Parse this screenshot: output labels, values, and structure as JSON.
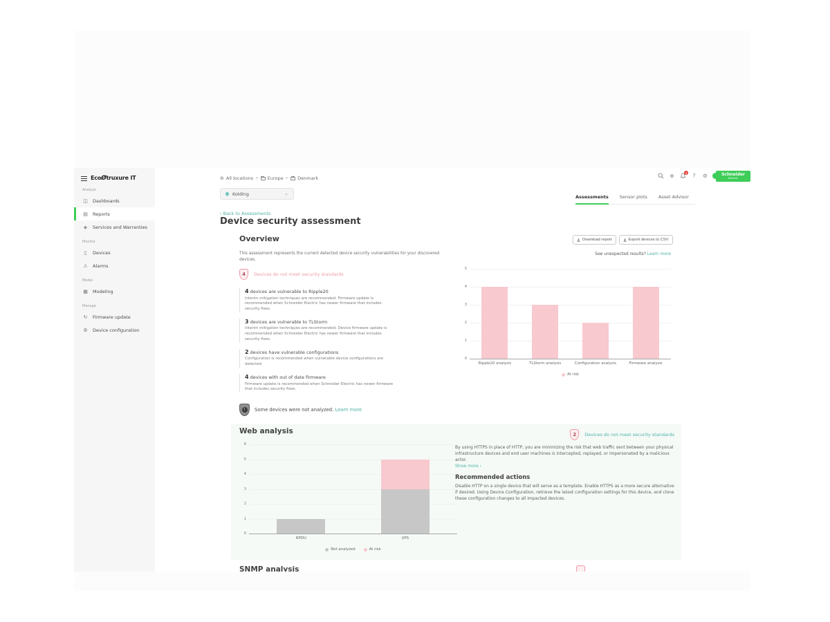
{
  "icons": {
    "dashboards": "◫",
    "reports": "▤",
    "services": "◈",
    "devices": "▯",
    "alarms": "⚠",
    "modeling": "▦",
    "firmware": "↻",
    "config": "⚙",
    "globe": "⊕",
    "help": "?",
    "gear": "⚙",
    "chevron_down": "⌄",
    "chevron_left": "‹",
    "not_analyzed_mark": "!"
  },
  "sidebar": {
    "logo": {
      "prefix": "Eco",
      "swirl": "Ø",
      "suffix": "truxure IT"
    },
    "sections": [
      {
        "label": "Analyze",
        "items": [
          {
            "label": "Dashboards"
          },
          {
            "label": "Reports"
          },
          {
            "label": "Services and Warranties"
          }
        ]
      },
      {
        "label": "Monitor",
        "items": [
          {
            "label": "Devices"
          },
          {
            "label": "Alarms"
          }
        ]
      },
      {
        "label": "Model",
        "items": [
          {
            "label": "Modeling"
          }
        ]
      },
      {
        "label": "Manage",
        "items": [
          {
            "label": "Firmware update"
          },
          {
            "label": "Device configuration"
          }
        ]
      }
    ]
  },
  "topbar": {
    "breadcrumb": {
      "root": "All locations",
      "sep": ">",
      "level1": "Europe",
      "level2": "Denmark"
    },
    "location_selector": {
      "value": "Kolding"
    },
    "notification_count": "4",
    "brand": {
      "line1": "Schneider",
      "line2": "Electric"
    }
  },
  "tabs": {
    "tab1": "Assessments",
    "tab2": "Sensor plots",
    "tab3": "Asset Advisor"
  },
  "page": {
    "back_link": "Back to Assessments",
    "title": "Device security assessment"
  },
  "overview": {
    "heading": "Overview",
    "download_button": "Download report",
    "export_button": "Export devices to CSV",
    "description": "This assessment represents the current detected device security vulnerabilities for your discovered devices.",
    "unexpected_text": "See unexpected results?",
    "unexpected_link": "Learn more",
    "badge": {
      "count": "4",
      "label": "Devices do not meet security standards"
    },
    "findings": [
      {
        "count": "4",
        "title": "devices are vulnerable to Ripple20",
        "description": "Interim mitigation techniques are recommended. Firmware update is recommended when Schneider Electric has newer firmware that includes security fixes."
      },
      {
        "count": "3",
        "title": "devices are vulnerable to TLStorm",
        "description": "Interim mitigation techniques are recommended. Device firmware update is recommended when Schneider Electric has newer firmware that includes security fixes."
      },
      {
        "count": "2",
        "title": "devices have vulnerable configurations",
        "description": "Configuration is recommended when vulnerable device configurations are detected."
      },
      {
        "count": "4",
        "title": "devices with out of date firmware",
        "description": "Firmware update is recommended when Schneider Electric has newer firmware that includes security fixes."
      }
    ],
    "not_analyzed": {
      "text": "Some devices were not analyzed.",
      "link": "Learn more"
    }
  },
  "web_analysis": {
    "heading": "Web analysis",
    "badge": {
      "count": "2",
      "label": "Devices do not meet security standards"
    },
    "description": "By using HTTPS in place of HTTP, you are minimizing the risk that web traffic sent between your physical infrastructure devices and end user machines is intercepted, replayed, or impersonated by a malicious actor.",
    "show_more": "Show more ›",
    "recommended_heading": "Recommended actions",
    "recommended_text": "Disable HTTP on a single device that will serve as a template. Enable HTTPS as a more secure alternative if desired. Using Device Configuration, retrieve the latest configuration settings for this device, and clone these configuration changes to all impacted devices."
  },
  "snmp": {
    "heading": "SNMP analysis"
  },
  "colors": {
    "accent_green": "#3dcd58",
    "risk_pink": "#f8c9cf",
    "not_analyzed_gray": "#c7c7c7",
    "teal_link": "#4cb1a8"
  },
  "chart_data": [
    {
      "type": "bar",
      "title": "",
      "xlabel": "",
      "ylabel": "",
      "categories": [
        "Ripple20 analysis",
        "TLStorm analysis",
        "Configuration analysis",
        "Firmware analysis"
      ],
      "series": [
        {
          "name": "At risk",
          "color": "#f8c9cf",
          "values": [
            4,
            3,
            2,
            4
          ]
        }
      ],
      "ylim": [
        0,
        5
      ],
      "yticks": [
        0,
        1,
        2,
        3,
        4,
        5
      ],
      "grid": true,
      "legend_position": "bottom"
    },
    {
      "type": "bar",
      "stacked": true,
      "title": "",
      "xlabel": "",
      "ylabel": "",
      "categories": [
        "RPDU",
        "UPS"
      ],
      "series": [
        {
          "name": "Not analyzed",
          "color": "#c7c7c7",
          "values": [
            1,
            3
          ]
        },
        {
          "name": "At risk",
          "color": "#f8c9cf",
          "values": [
            0,
            2
          ]
        }
      ],
      "ylim": [
        0,
        6
      ],
      "yticks": [
        0,
        1,
        2,
        3,
        4,
        5,
        6
      ],
      "grid": true,
      "legend_position": "bottom"
    }
  ]
}
